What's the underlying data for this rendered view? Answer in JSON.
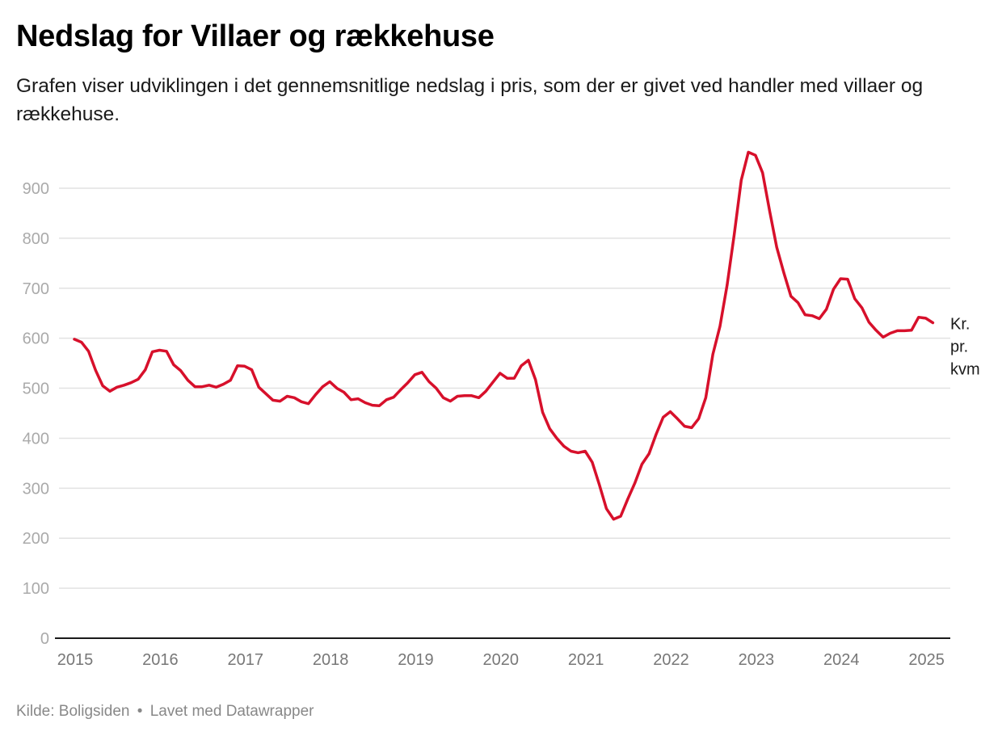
{
  "header": {
    "title": "Nedslag for Villaer og rækkehuse",
    "subtitle": "Grafen viser udviklingen i det gennemsnitlige nedslag i pris, som der er givet ved handler med villaer og rækkehuse."
  },
  "footer": {
    "source": "Kilde: Boligsiden",
    "separator": "•",
    "credit": "Lavet med Datawrapper"
  },
  "chart_data": {
    "type": "line",
    "title": "Nedslag for Villaer og rækkehuse",
    "xlabel": "",
    "ylabel": "",
    "unit_label": [
      "Kr.",
      "pr.",
      "kvm"
    ],
    "ylim": [
      0,
      900
    ],
    "yticks": [
      0,
      100,
      200,
      300,
      400,
      500,
      600,
      700,
      800,
      900
    ],
    "xticks": [
      "2015",
      "2016",
      "2017",
      "2018",
      "2019",
      "2020",
      "2021",
      "2022",
      "2023",
      "2024",
      "2025"
    ],
    "grid": true,
    "legend": "none",
    "line_color": "#d7102b",
    "x_start": "2015-01",
    "x_frequency": "monthly",
    "series": [
      {
        "name": "Nedslag (kr. pr. kvm)",
        "values": [
          598,
          592,
          574,
          536,
          505,
          494,
          502,
          506,
          511,
          518,
          537,
          573,
          576,
          574,
          547,
          535,
          516,
          503,
          503,
          506,
          502,
          508,
          516,
          545,
          544,
          537,
          502,
          489,
          476,
          474,
          484,
          481,
          473,
          469,
          487,
          503,
          513,
          500,
          492,
          477,
          479,
          471,
          466,
          465,
          477,
          482,
          497,
          511,
          527,
          532,
          513,
          500,
          481,
          474,
          484,
          485,
          485,
          481,
          494,
          512,
          530,
          520,
          520,
          545,
          556,
          517,
          452,
          419,
          400,
          384,
          374,
          371,
          374,
          352,
          307,
          259,
          238,
          244,
          278,
          310,
          348,
          369,
          408,
          442,
          453,
          439,
          424,
          421,
          439,
          481,
          568,
          624,
          706,
          806,
          916,
          972,
          966,
          931,
          855,
          782,
          731,
          684,
          671,
          647,
          645,
          639,
          658,
          698,
          719,
          718,
          679,
          661,
          632,
          616,
          602,
          610,
          615,
          615,
          616,
          642,
          640,
          631
        ]
      }
    ]
  }
}
